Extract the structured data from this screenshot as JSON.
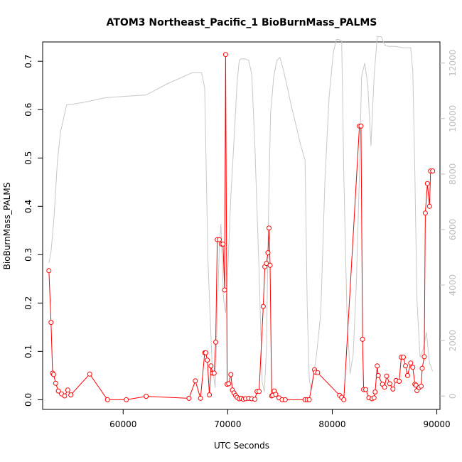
{
  "chart_data": {
    "type": "line",
    "title": "ATOM3 Northeast_Pacific_1 BioBurnMass_PALMS",
    "xlabel": "UTC Seconds",
    "ylabel": "BioBurnMass_PALMS",
    "xlim": [
      52300,
      90300
    ],
    "ylim": [
      -0.02,
      0.74
    ],
    "y2lim": [
      -480,
      12760
    ],
    "x_ticks": [
      60000,
      70000,
      80000,
      90000
    ],
    "y_ticks": [
      0.0,
      0.1,
      0.2,
      0.3,
      0.4,
      0.5,
      0.6,
      0.7
    ],
    "y2_ticks": [
      0,
      2000,
      4000,
      6000,
      8000,
      10000,
      12000
    ],
    "x_tick_labels": [
      "60000",
      "70000",
      "80000",
      "90000"
    ],
    "y_tick_labels": [
      "0.0",
      "0.1",
      "0.2",
      "0.3",
      "0.4",
      "0.5",
      "0.6",
      "0.7"
    ],
    "y2_tick_labels": [
      "0",
      "2000",
      "4000",
      "6000",
      "8000",
      "10000",
      "12000"
    ],
    "colors": {
      "series": "#ff0000",
      "secondary": "#c8c8c8",
      "axis": "#000000",
      "axis_right": "#bdbdbd"
    },
    "series": [
      {
        "axis": "left",
        "style": "line+points",
        "x": [
          52900,
          53100,
          53250,
          53350,
          53550,
          53800,
          54100,
          54400,
          54700,
          55000,
          56800,
          58500,
          60300,
          62200,
          66300,
          66900,
          67400,
          67800,
          67900,
          68050,
          68250,
          68400,
          68550,
          68700,
          68850,
          69000,
          69200,
          69400,
          69550,
          69700,
          69800,
          69950,
          70100,
          70300,
          70450,
          70600,
          70750,
          70900,
          71100,
          71300,
          71500,
          71700,
          72000,
          72300,
          72600,
          72800,
          73000,
          73400,
          73550,
          73700,
          73850,
          73950,
          74050,
          74200,
          74300,
          74450,
          74600,
          74900,
          75200,
          75500,
          77400,
          77600,
          77800,
          78300,
          78400,
          78600,
          80700,
          80900,
          81100,
          82600,
          82750,
          82900,
          83000,
          83200,
          83500,
          83800,
          84000,
          84100,
          84300,
          84400,
          84800,
          85000,
          85200,
          85500,
          85800,
          86100,
          86400,
          86600,
          86800,
          87000,
          87200,
          87500,
          87700,
          87900,
          88000,
          88100,
          88300,
          88500,
          88600,
          88800,
          88900,
          89100,
          89300,
          89400,
          89600
        ],
        "y": [
          0.267,
          0.16,
          0.055,
          0.052,
          0.034,
          0.018,
          0.012,
          0.008,
          0.02,
          0.01,
          0.053,
          0.0,
          0.0,
          0.007,
          0.003,
          0.039,
          0.003,
          0.097,
          0.097,
          0.082,
          0.01,
          0.07,
          0.055,
          0.055,
          0.119,
          0.331,
          0.331,
          0.322,
          0.322,
          0.227,
          0.714,
          0.032,
          0.033,
          0.052,
          0.02,
          0.014,
          0.009,
          0.005,
          0.002,
          0.003,
          0.001,
          0.002,
          0.003,
          0.002,
          0.001,
          0.017,
          0.017,
          0.193,
          0.275,
          0.282,
          0.304,
          0.355,
          0.278,
          0.008,
          0.009,
          0.018,
          0.011,
          0.004,
          0.0,
          0.0,
          0.0,
          0.0,
          0.0,
          0.062,
          0.057,
          0.056,
          0.009,
          0.005,
          0.0,
          0.566,
          0.566,
          0.125,
          0.021,
          0.021,
          0.004,
          0.002,
          0.004,
          0.016,
          0.07,
          0.05,
          0.032,
          0.026,
          0.049,
          0.033,
          0.022,
          0.04,
          0.038,
          0.088,
          0.088,
          0.07,
          0.05,
          0.076,
          0.067,
          0.032,
          0.03,
          0.019,
          0.025,
          0.028,
          0.065,
          0.089,
          0.386,
          0.447,
          0.4,
          0.473,
          0.473
        ]
      },
      {
        "axis": "right",
        "style": "line",
        "x": [
          52900,
          53100,
          53400,
          53700,
          54000,
          54300,
          54600,
          54900,
          56500,
          58300,
          60200,
          62200,
          64200,
          66600,
          67500,
          67800,
          68100,
          68500,
          68800,
          69000,
          69200,
          69350,
          69600,
          69800,
          70000,
          70300,
          70600,
          70900,
          71100,
          71300,
          71600,
          72000,
          72300,
          72600,
          73000,
          73300,
          73500,
          73700,
          73900,
          74100,
          74400,
          74700,
          75000,
          75300,
          75600,
          76000,
          76500,
          77000,
          77400,
          77600,
          77800,
          78000,
          78200,
          78500,
          78900,
          79300,
          79700,
          80100,
          80400,
          80600,
          80900,
          81100,
          81400,
          81700,
          82000,
          82300,
          82600,
          82800,
          83100,
          83400,
          83700,
          84000,
          84300,
          84700,
          85000,
          85400,
          86000,
          86800,
          87500,
          87700,
          87900,
          88100,
          88400,
          88700,
          89000,
          89300,
          89600
        ],
        "y": [
          4800,
          5200,
          6500,
          8400,
          9500,
          10000,
          10500,
          10500,
          10600,
          10750,
          10800,
          10850,
          11250,
          11650,
          11650,
          11100,
          5000,
          1200,
          300,
          2800,
          5400,
          6200,
          3500,
          3000,
          4500,
          7200,
          9200,
          11300,
          12100,
          12150,
          12150,
          12100,
          11600,
          9000,
          4500,
          500,
          150,
          1600,
          6500,
          10200,
          11500,
          12100,
          12200,
          11800,
          11300,
          10600,
          9800,
          9000,
          8500,
          3300,
          600,
          200,
          700,
          1500,
          3000,
          7800,
          10800,
          12400,
          12850,
          12850,
          12800,
          8000,
          3000,
          800,
          1500,
          4000,
          8000,
          11500,
          12000,
          11200,
          9000,
          11500,
          12950,
          12950,
          12650,
          12600,
          12600,
          12550,
          12550,
          11700,
          8000,
          3500,
          1400,
          1700,
          2300,
          1200,
          900
        ]
      }
    ]
  }
}
